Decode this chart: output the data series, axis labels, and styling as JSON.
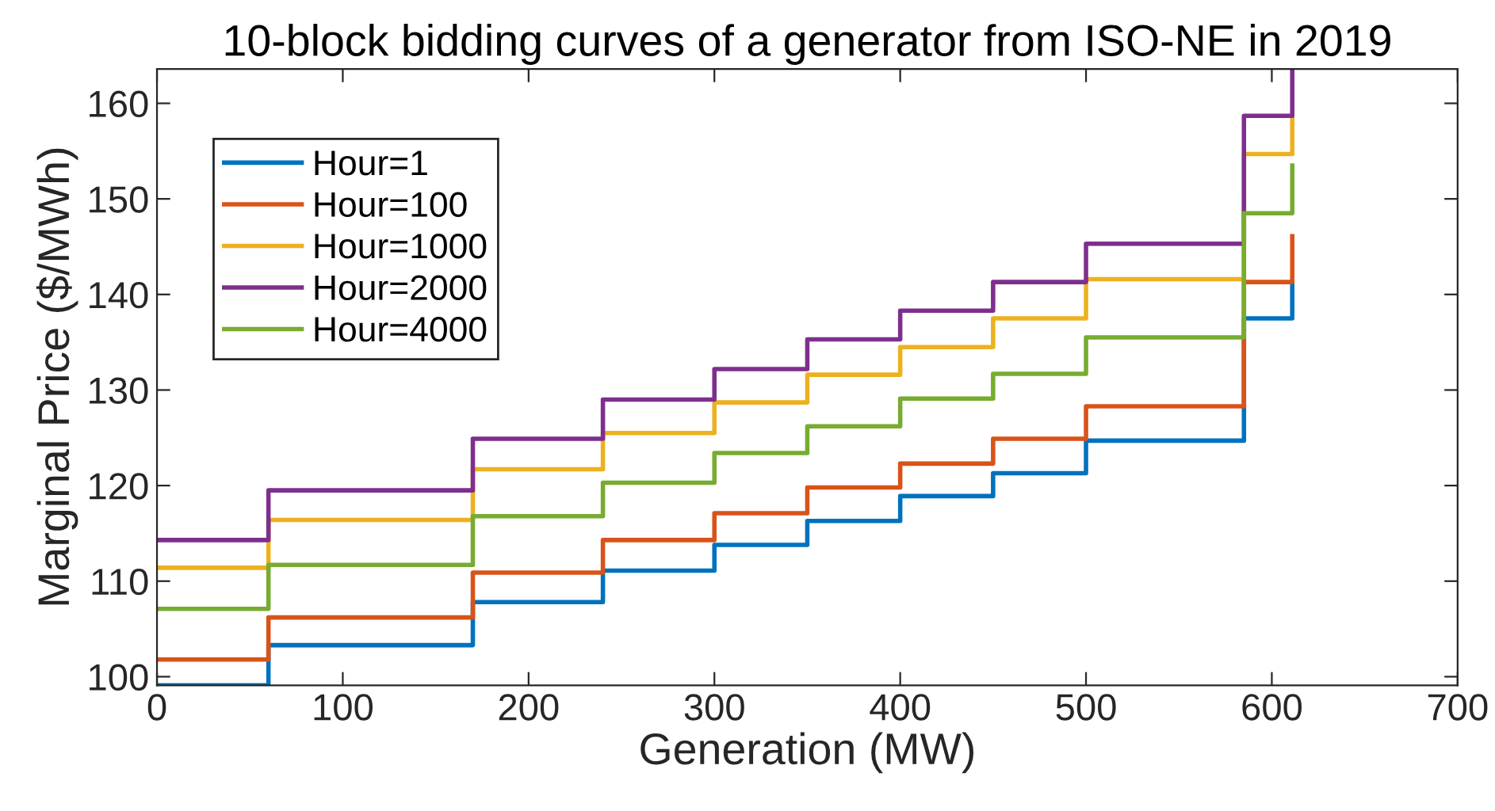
{
  "chart_data": {
    "type": "step",
    "title": "10-block bidding curves of a generator from ISO-NE in 2019",
    "xlabel": "Generation (MW)",
    "ylabel": "Marginal Price ($/MWh)",
    "x": [
      0,
      60,
      170,
      240,
      300,
      350,
      400,
      450,
      500,
      585,
      611
    ],
    "series": [
      {
        "name": "Hour=1",
        "color": "#0072bd",
        "values": [
          99.1,
          103.3,
          107.8,
          111.1,
          113.8,
          116.3,
          118.9,
          121.3,
          124.7,
          137.5,
          141.0
        ]
      },
      {
        "name": "Hour=100",
        "color": "#d95319",
        "values": [
          101.8,
          106.2,
          110.9,
          114.3,
          117.1,
          119.8,
          122.3,
          124.9,
          128.3,
          141.3,
          146.1
        ]
      },
      {
        "name": "Hour=1000",
        "color": "#edb120",
        "values": [
          111.4,
          116.4,
          121.7,
          125.5,
          128.7,
          131.6,
          134.5,
          137.5,
          141.6,
          154.7,
          158.6
        ]
      },
      {
        "name": "Hour=2000",
        "color": "#7e2f8e",
        "values": [
          114.3,
          119.5,
          124.9,
          129.0,
          132.2,
          135.3,
          138.3,
          141.3,
          145.3,
          158.7,
          163.6
        ]
      },
      {
        "name": "Hour=4000",
        "color": "#77ac30",
        "values": [
          107.1,
          111.7,
          116.8,
          120.3,
          123.4,
          126.2,
          129.1,
          131.7,
          135.5,
          148.5,
          153.5
        ]
      }
    ],
    "xlim": [
      0,
      700
    ],
    "xticks": [
      0,
      100,
      200,
      300,
      400,
      500,
      600,
      700
    ],
    "ylim": [
      99.1,
      163.6
    ],
    "yticks": [
      100,
      110,
      120,
      130,
      140,
      150,
      160
    ],
    "grid": false,
    "legend": "top left",
    "line_style": "solid",
    "marker": "none"
  }
}
